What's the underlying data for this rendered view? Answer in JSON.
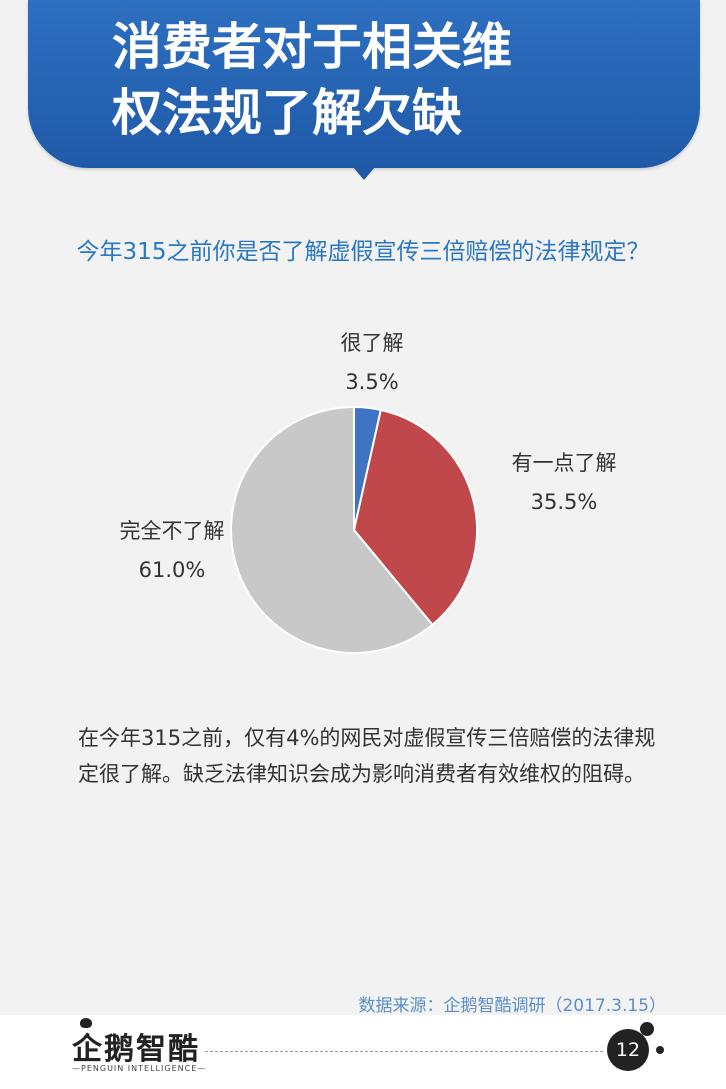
{
  "header": {
    "title_line1": "消费者对于相关维",
    "title_line2": "权法规了解欠缺"
  },
  "chart_data": {
    "type": "pie",
    "title": "今年315之前你是否了解虚假宣传三倍赔偿的法律规定？",
    "slices": [
      {
        "label": "很了解",
        "value": 3.5,
        "value_label": "3.5%",
        "color": "#3f74c2"
      },
      {
        "label": "有一点了解",
        "value": 35.5,
        "value_label": "35.5%",
        "color": "#c0474a"
      },
      {
        "label": "完全不了解",
        "value": 61.0,
        "value_label": "61.0%",
        "color": "#c8c8c8"
      }
    ]
  },
  "summary": {
    "text": "在今年315之前，仅有4%的网民对虚假宣传三倍赔偿的法律规定很了解。缺乏法律知识会成为影响消费者有效维权的阻碍。"
  },
  "source": "数据来源：企鹅智酷调研（2017.3.15）",
  "footer": {
    "logo_text": "企鹅智酷",
    "logo_subtext": "—PENGUIN INTELLIGENCE—",
    "page_number": "12"
  }
}
